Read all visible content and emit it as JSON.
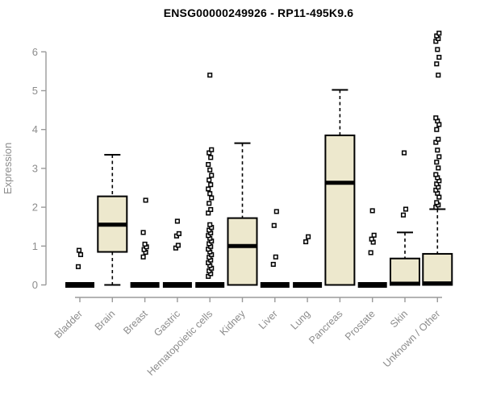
{
  "chart_data": {
    "type": "boxplot",
    "title": "ENSG00000249926 - RP11-495K9.6",
    "ylabel": "Expression",
    "xlabel": "",
    "ylim": [
      0,
      6.6
    ],
    "yticks": [
      0,
      1,
      2,
      3,
      4,
      5,
      6
    ],
    "grid": false,
    "legend": "none",
    "categories": [
      "Bladder",
      "Brain",
      "Breast",
      "Gastric",
      "Hematopoietic cells",
      "Kidney",
      "Liver",
      "Lung",
      "Pancreas",
      "Prostate",
      "Skin",
      "Unknown / Other"
    ],
    "boxes": [
      {
        "category": "Bladder",
        "whisker_low": 0,
        "q1": 0,
        "median": 0,
        "q3": 0,
        "whisker_high": 0,
        "outliers": [
          0.47,
          0.78,
          0.89
        ]
      },
      {
        "category": "Brain",
        "whisker_low": 0,
        "q1": 0.85,
        "median": 1.55,
        "q3": 2.28,
        "whisker_high": 3.35,
        "outliers": []
      },
      {
        "category": "Breast",
        "whisker_low": 0,
        "q1": 0,
        "median": 0,
        "q3": 0,
        "whisker_high": 0,
        "outliers": [
          0.72,
          0.84,
          0.91,
          0.98,
          1.05,
          1.35,
          2.18
        ]
      },
      {
        "category": "Gastric",
        "whisker_low": 0,
        "q1": 0,
        "median": 0,
        "q3": 0,
        "whisker_high": 0,
        "outliers": [
          0.95,
          1.02,
          1.26,
          1.32,
          1.64
        ]
      },
      {
        "category": "Hematopoietic cells",
        "whisker_low": 0,
        "q1": 0,
        "median": 0,
        "q3": 0,
        "whisker_high": 0,
        "outliers": [
          0.22,
          0.29,
          0.36,
          0.43,
          0.5,
          0.57,
          0.64,
          0.71,
          0.78,
          0.85,
          0.92,
          0.99,
          1.06,
          1.13,
          1.2,
          1.27,
          1.34,
          1.41,
          1.48,
          1.55,
          1.85,
          1.94,
          2.1,
          2.24,
          2.35,
          2.47,
          2.58,
          2.7,
          2.82,
          2.96,
          3.1,
          3.28,
          3.4,
          3.48,
          5.4
        ]
      },
      {
        "category": "Kidney",
        "whisker_low": 0,
        "q1": 0,
        "median": 1.0,
        "q3": 1.72,
        "whisker_high": 3.65,
        "outliers": []
      },
      {
        "category": "Liver",
        "whisker_low": 0,
        "q1": 0,
        "median": 0,
        "q3": 0,
        "whisker_high": 0,
        "outliers": [
          0.53,
          0.72,
          1.53,
          1.89
        ]
      },
      {
        "category": "Lung",
        "whisker_low": 0,
        "q1": 0,
        "median": 0,
        "q3": 0,
        "whisker_high": 0,
        "outliers": [
          1.11,
          1.24
        ]
      },
      {
        "category": "Pancreas",
        "whisker_low": 0,
        "q1": 0,
        "median": 2.63,
        "q3": 3.85,
        "whisker_high": 5.02,
        "outliers": []
      },
      {
        "category": "Prostate",
        "whisker_low": 0,
        "q1": 0,
        "median": 0,
        "q3": 0,
        "whisker_high": 0,
        "outliers": [
          0.83,
          1.1,
          1.18,
          1.28,
          1.91
        ]
      },
      {
        "category": "Skin",
        "whisker_low": 0,
        "q1": 0,
        "median": 0.03,
        "q3": 0.68,
        "whisker_high": 1.35,
        "outliers": [
          1.8,
          1.95,
          3.4
        ]
      },
      {
        "category": "Unknown / Other",
        "whisker_low": 0,
        "q1": 0,
        "median": 0.04,
        "q3": 0.8,
        "whisker_high": 1.95,
        "outliers": [
          2.0,
          2.06,
          2.12,
          2.26,
          2.36,
          2.44,
          2.52,
          2.6,
          2.68,
          2.76,
          2.84,
          3.01,
          3.16,
          3.3,
          3.47,
          3.67,
          3.75,
          4.0,
          4.13,
          4.22,
          4.3,
          5.4,
          5.69,
          5.86,
          6.06,
          6.27,
          6.34,
          6.41,
          6.48
        ]
      }
    ],
    "colors": {
      "box_fill": "#ede8cd",
      "box_stroke": "#000000",
      "median": "#000000",
      "whisker": "#000000",
      "outlier_stroke": "#000000",
      "axis_line": "#9a9a9a",
      "axis_text": "#8c8c8c",
      "title_text": "#000000",
      "background": "#ffffff"
    }
  }
}
